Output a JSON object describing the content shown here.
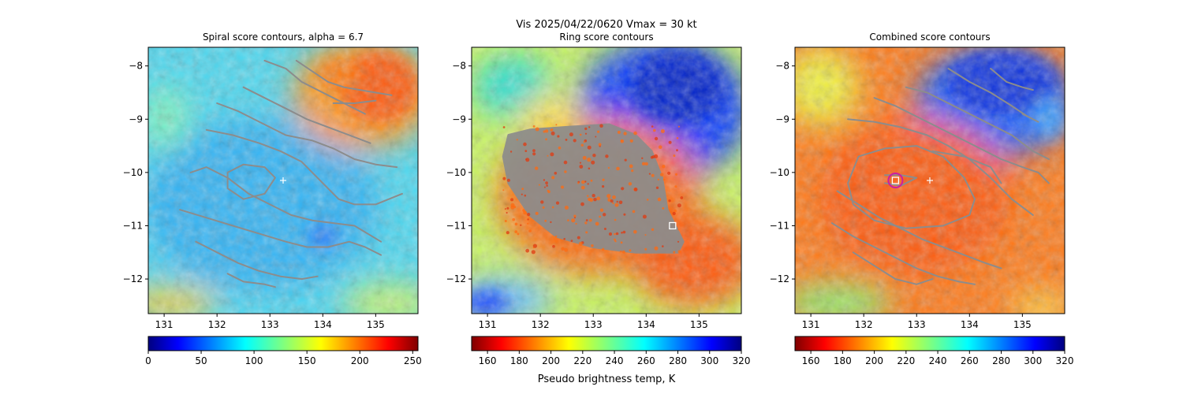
{
  "figure": {
    "suptitle_line1": "Vis  2025/04/22/0620    Vmax = 30 kt",
    "colorbar_label": "Pseudo brightness temp, K"
  },
  "colors": {
    "contour": "#8c8c8c",
    "marker_square": "#ffffff",
    "circle": "#cc1f9f",
    "center_plus": "#ffffff"
  },
  "chart_data": [
    {
      "type": "heatmap",
      "title": "Spiral score contours, alpha =  6.7",
      "xticks": [
        "131",
        "132",
        "133",
        "134",
        "135"
      ],
      "yticks": [
        "−8",
        "−9",
        "−10",
        "−11",
        "−12"
      ],
      "xlim": [
        130.7,
        135.8
      ],
      "ylim": [
        -12.65,
        -7.65
      ],
      "colorbar": {
        "ticks": [
          "0",
          "50",
          "100",
          "150",
          "200",
          "250"
        ],
        "range": [
          0,
          255
        ],
        "cmap": "jet_r"
      },
      "center_plus": [
        133.25,
        -10.15
      ],
      "contours": [
        [
          [
            131.5,
            -10.0
          ],
          [
            131.8,
            -9.9
          ],
          [
            132.2,
            -10.1
          ],
          [
            132.6,
            -10.4
          ],
          [
            133.0,
            -10.6
          ],
          [
            133.4,
            -10.8
          ],
          [
            133.8,
            -10.9
          ],
          [
            134.2,
            -10.95
          ],
          [
            134.6,
            -11.0
          ],
          [
            135.1,
            -11.3
          ]
        ],
        [
          [
            131.3,
            -10.7
          ],
          [
            131.8,
            -10.85
          ],
          [
            132.3,
            -11.0
          ],
          [
            132.8,
            -11.15
          ],
          [
            133.3,
            -11.3
          ],
          [
            133.7,
            -11.4
          ],
          [
            134.1,
            -11.4
          ],
          [
            134.5,
            -11.3
          ],
          [
            134.8,
            -11.4
          ],
          [
            135.1,
            -11.55
          ]
        ],
        [
          [
            131.6,
            -11.3
          ],
          [
            132.0,
            -11.5
          ],
          [
            132.4,
            -11.7
          ],
          [
            132.8,
            -11.85
          ],
          [
            133.2,
            -11.95
          ],
          [
            133.6,
            -12.0
          ],
          [
            133.9,
            -11.95
          ]
        ],
        [
          [
            132.2,
            -11.9
          ],
          [
            132.5,
            -12.05
          ],
          [
            132.9,
            -12.1
          ],
          [
            133.1,
            -12.15
          ]
        ],
        [
          [
            131.8,
            -9.2
          ],
          [
            132.3,
            -9.3
          ],
          [
            132.8,
            -9.45
          ],
          [
            133.2,
            -9.6
          ],
          [
            133.6,
            -9.8
          ],
          [
            134.0,
            -10.2
          ],
          [
            134.3,
            -10.5
          ],
          [
            134.6,
            -10.6
          ],
          [
            135.0,
            -10.6
          ],
          [
            135.5,
            -10.4
          ]
        ],
        [
          [
            132.0,
            -8.7
          ],
          [
            132.4,
            -8.85
          ],
          [
            132.8,
            -9.05
          ],
          [
            133.3,
            -9.3
          ],
          [
            133.8,
            -9.4
          ],
          [
            134.2,
            -9.55
          ],
          [
            134.6,
            -9.75
          ],
          [
            135.0,
            -9.85
          ],
          [
            135.4,
            -9.9
          ]
        ],
        [
          [
            132.5,
            -8.4
          ],
          [
            132.9,
            -8.6
          ],
          [
            133.3,
            -8.8
          ],
          [
            133.7,
            -9.0
          ],
          [
            134.1,
            -9.15
          ],
          [
            134.5,
            -9.3
          ],
          [
            134.9,
            -9.45
          ]
        ],
        [
          [
            132.9,
            -7.9
          ],
          [
            133.3,
            -8.05
          ],
          [
            133.6,
            -8.3
          ],
          [
            134.0,
            -8.5
          ],
          [
            134.4,
            -8.7
          ],
          [
            134.8,
            -8.9
          ]
        ],
        [
          [
            133.5,
            -7.9
          ],
          [
            133.8,
            -8.1
          ],
          [
            134.1,
            -8.3
          ],
          [
            134.4,
            -8.4
          ],
          [
            134.7,
            -8.45
          ],
          [
            135.0,
            -8.5
          ],
          [
            135.3,
            -8.55
          ]
        ],
        [
          [
            134.2,
            -8.7
          ],
          [
            134.6,
            -8.7
          ],
          [
            135.0,
            -8.65
          ]
        ],
        [
          [
            132.2,
            -10.0
          ],
          [
            132.5,
            -9.85
          ],
          [
            132.9,
            -9.9
          ],
          [
            133.1,
            -10.1
          ],
          [
            132.9,
            -10.4
          ],
          [
            132.5,
            -10.5
          ],
          [
            132.2,
            -10.3
          ],
          [
            132.2,
            -10.0
          ]
        ]
      ]
    },
    {
      "type": "heatmap",
      "title": "Ring score contours",
      "xticks": [
        "131",
        "132",
        "133",
        "134",
        "135"
      ],
      "yticks": [
        "−8",
        "−9",
        "−10",
        "−11",
        "−12"
      ],
      "xlim": [
        130.7,
        135.8
      ],
      "ylim": [
        -12.65,
        -7.65
      ],
      "colorbar": {
        "ticks": [
          "160",
          "180",
          "200",
          "220",
          "240",
          "260",
          "280",
          "300",
          "320"
        ],
        "range": [
          150,
          320
        ],
        "cmap": "jet"
      },
      "ring_region": [
        [
          131.4,
          -9.3
        ],
        [
          131.8,
          -9.2
        ],
        [
          132.5,
          -9.15
        ],
        [
          133.3,
          -9.1
        ],
        [
          133.8,
          -9.3
        ],
        [
          134.1,
          -9.6
        ],
        [
          134.3,
          -10.1
        ],
        [
          134.4,
          -10.7
        ],
        [
          134.7,
          -11.3
        ],
        [
          134.6,
          -11.5
        ],
        [
          133.8,
          -11.5
        ],
        [
          133.0,
          -11.4
        ],
        [
          132.3,
          -11.2
        ],
        [
          131.8,
          -10.8
        ],
        [
          131.4,
          -10.2
        ],
        [
          131.3,
          -9.7
        ]
      ],
      "square_marker": [
        134.5,
        -11.0
      ]
    },
    {
      "type": "heatmap",
      "title": "Combined score contours",
      "xticks": [
        "131",
        "132",
        "133",
        "134",
        "135"
      ],
      "yticks": [
        "−8",
        "−9",
        "−10",
        "−11",
        "−12"
      ],
      "xlim": [
        130.7,
        135.8
      ],
      "ylim": [
        -12.65,
        -7.65
      ],
      "colorbar": {
        "ticks": [
          "160",
          "180",
          "200",
          "220",
          "240",
          "260",
          "280",
          "300",
          "320"
        ],
        "range": [
          150,
          320
        ],
        "cmap": "jet"
      },
      "center_plus": [
        133.25,
        -10.15
      ],
      "square_marker": [
        132.6,
        -10.15
      ],
      "circle": [
        132.6,
        -10.15
      ],
      "contours": [
        [
          [
            131.5,
            -10.35
          ],
          [
            131.9,
            -10.6
          ],
          [
            132.3,
            -10.85
          ],
          [
            132.7,
            -11.05
          ],
          [
            133.1,
            -11.25
          ],
          [
            133.5,
            -11.4
          ],
          [
            133.9,
            -11.55
          ],
          [
            134.3,
            -11.7
          ],
          [
            134.6,
            -11.8
          ]
        ],
        [
          [
            131.4,
            -10.95
          ],
          [
            131.8,
            -11.2
          ],
          [
            132.2,
            -11.4
          ],
          [
            132.6,
            -11.6
          ],
          [
            133.0,
            -11.8
          ],
          [
            133.4,
            -11.95
          ],
          [
            133.8,
            -12.05
          ],
          [
            134.1,
            -12.1
          ]
        ],
        [
          [
            131.8,
            -11.5
          ],
          [
            132.2,
            -11.75
          ],
          [
            132.6,
            -12.0
          ],
          [
            133.0,
            -12.1
          ],
          [
            133.3,
            -12.0
          ]
        ],
        [
          [
            131.7,
            -9.0
          ],
          [
            132.2,
            -9.05
          ],
          [
            132.7,
            -9.15
          ],
          [
            133.2,
            -9.3
          ],
          [
            133.6,
            -9.5
          ],
          [
            134.0,
            -9.75
          ],
          [
            134.4,
            -10.1
          ],
          [
            134.8,
            -10.5
          ],
          [
            135.2,
            -10.8
          ]
        ],
        [
          [
            132.2,
            -8.6
          ],
          [
            132.6,
            -8.75
          ],
          [
            133.0,
            -8.95
          ],
          [
            133.4,
            -9.15
          ],
          [
            133.8,
            -9.35
          ],
          [
            134.2,
            -9.55
          ],
          [
            134.6,
            -9.75
          ],
          [
            135.0,
            -9.9
          ],
          [
            135.3,
            -10.0
          ],
          [
            135.5,
            -10.2
          ]
        ],
        [
          [
            132.8,
            -8.4
          ],
          [
            133.2,
            -8.5
          ],
          [
            133.6,
            -8.7
          ],
          [
            134.0,
            -8.9
          ],
          [
            134.4,
            -9.1
          ],
          [
            134.8,
            -9.3
          ],
          [
            135.2,
            -9.6
          ],
          [
            135.5,
            -9.75
          ]
        ],
        [
          [
            133.6,
            -8.05
          ],
          [
            134.0,
            -8.3
          ],
          [
            134.4,
            -8.5
          ],
          [
            134.8,
            -8.75
          ],
          [
            135.1,
            -8.95
          ]
        ],
        [
          [
            134.4,
            -8.05
          ],
          [
            134.7,
            -8.3
          ],
          [
            135.0,
            -8.4
          ],
          [
            135.2,
            -8.45
          ]
        ],
        [
          [
            135.0,
            -8.9
          ],
          [
            135.3,
            -9.05
          ]
        ],
        [
          [
            133.3,
            -9.6
          ],
          [
            133.9,
            -9.7
          ],
          [
            134.4,
            -9.9
          ],
          [
            134.6,
            -10.2
          ]
        ],
        [
          [
            131.9,
            -9.7
          ],
          [
            132.4,
            -9.55
          ],
          [
            133.0,
            -9.5
          ],
          [
            133.5,
            -9.7
          ],
          [
            133.9,
            -10.1
          ],
          [
            134.1,
            -10.5
          ],
          [
            134.0,
            -10.8
          ],
          [
            133.5,
            -11.0
          ],
          [
            132.8,
            -11.05
          ],
          [
            132.2,
            -10.9
          ],
          [
            131.8,
            -10.6
          ],
          [
            131.7,
            -10.2
          ],
          [
            131.9,
            -9.7
          ]
        ],
        [
          [
            132.4,
            -10.05
          ],
          [
            132.7,
            -10.05
          ],
          [
            133.0,
            -10.1
          ],
          [
            132.7,
            -10.25
          ],
          [
            132.4,
            -10.2
          ]
        ]
      ]
    }
  ]
}
